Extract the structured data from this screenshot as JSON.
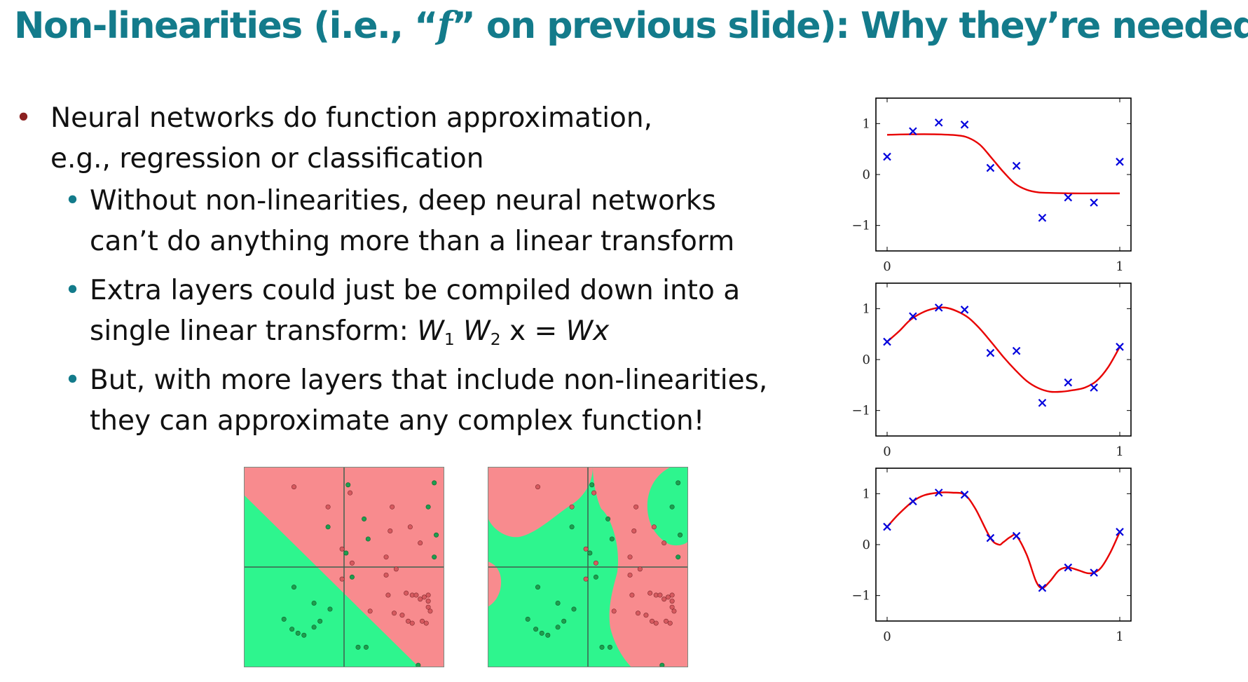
{
  "slide": {
    "title_pre": "Non-linearities (i.e., “",
    "title_var": "f",
    "title_post": "” on previous slide): Why they’re needed"
  },
  "bullets": {
    "main": {
      "line1": "Neural networks do function approximation,",
      "line2": "e.g., regression or classification"
    },
    "sub1": {
      "line1": "Without non-linearities, deep neural networks",
      "line2": "can’t do anything more than a linear transform"
    },
    "sub2": {
      "line1": "Extra layers could just be compiled down into a",
      "line2_pre": "single linear transform: ",
      "w1": "W",
      "w1_sub": "1",
      "w2": "W",
      "w2_sub": "2",
      "x_eq": " x = ",
      "wx": "Wx"
    },
    "sub3": {
      "line1": "But, with more layers that include non-linearities,",
      "line2": "they can approximate any complex function!"
    }
  },
  "colors": {
    "title": "#137b8b",
    "bullet_main": "#8b2020",
    "bullet_sub": "#137b8b",
    "curve": "#e80000",
    "points": "#0000dd",
    "region_red": "#f88b8e",
    "region_green": "#2ef58e"
  },
  "chart_data": [
    {
      "type": "line",
      "description_key": "fit-sigmoid",
      "xlim": [
        0,
        1
      ],
      "ylim": [
        -1.5,
        1.5
      ],
      "xticks": [
        "0",
        "1"
      ],
      "yticks": [
        "1",
        "0",
        "−1"
      ],
      "points": {
        "x": [
          0.0,
          0.111,
          0.222,
          0.333,
          0.444,
          0.556,
          0.667,
          0.778,
          0.889,
          1.0
        ],
        "y": [
          0.35,
          0.85,
          1.02,
          0.98,
          0.13,
          0.17,
          -0.85,
          -0.45,
          -0.55,
          0.25
        ]
      },
      "curve": {
        "x": [
          0.0,
          0.1,
          0.2,
          0.3,
          0.35,
          0.4,
          0.45,
          0.5,
          0.55,
          0.6,
          0.65,
          0.7,
          0.8,
          0.9,
          1.0
        ],
        "y": [
          0.78,
          0.79,
          0.79,
          0.77,
          0.72,
          0.58,
          0.32,
          0.05,
          -0.18,
          -0.3,
          -0.35,
          -0.36,
          -0.37,
          -0.37,
          -0.37
        ]
      }
    },
    {
      "type": "line",
      "description_key": "fit-smooth",
      "xlim": [
        0,
        1
      ],
      "ylim": [
        -1.5,
        1.5
      ],
      "xticks": [
        "0",
        "1"
      ],
      "yticks": [
        "1",
        "0",
        "−1"
      ],
      "points": {
        "x": [
          0.0,
          0.111,
          0.222,
          0.333,
          0.444,
          0.556,
          0.667,
          0.778,
          0.889,
          1.0
        ],
        "y": [
          0.35,
          0.85,
          1.02,
          0.98,
          0.13,
          0.17,
          -0.85,
          -0.45,
          -0.55,
          0.25
        ]
      },
      "curve": {
        "x": [
          0.0,
          0.05,
          0.1,
          0.15,
          0.2,
          0.25,
          0.3,
          0.35,
          0.4,
          0.45,
          0.5,
          0.55,
          0.6,
          0.65,
          0.7,
          0.75,
          0.8,
          0.85,
          0.9,
          0.95,
          1.0
        ],
        "y": [
          0.35,
          0.55,
          0.78,
          0.92,
          1.0,
          1.02,
          0.95,
          0.82,
          0.6,
          0.33,
          0.05,
          -0.2,
          -0.42,
          -0.56,
          -0.63,
          -0.63,
          -0.6,
          -0.55,
          -0.42,
          -0.15,
          0.25
        ]
      }
    },
    {
      "type": "line",
      "description_key": "fit-overfit",
      "xlim": [
        0,
        1
      ],
      "ylim": [
        -1.5,
        1.5
      ],
      "xticks": [
        "0",
        "1"
      ],
      "yticks": [
        "1",
        "0",
        "−1"
      ],
      "points": {
        "x": [
          0.0,
          0.111,
          0.222,
          0.333,
          0.444,
          0.556,
          0.667,
          0.778,
          0.889,
          1.0
        ],
        "y": [
          0.35,
          0.85,
          1.02,
          0.98,
          0.13,
          0.17,
          -0.85,
          -0.45,
          -0.55,
          0.25
        ]
      },
      "curve": {
        "x": [
          0.0,
          0.05,
          0.111,
          0.16,
          0.222,
          0.28,
          0.333,
          0.38,
          0.444,
          0.48,
          0.5,
          0.53,
          0.556,
          0.6,
          0.64,
          0.667,
          0.7,
          0.74,
          0.778,
          0.82,
          0.86,
          0.889,
          0.92,
          0.96,
          1.0
        ],
        "y": [
          0.35,
          0.6,
          0.85,
          0.97,
          1.02,
          1.02,
          0.98,
          0.7,
          0.13,
          0.0,
          0.05,
          0.15,
          0.17,
          -0.2,
          -0.72,
          -0.85,
          -0.72,
          -0.5,
          -0.45,
          -0.5,
          -0.56,
          -0.55,
          -0.45,
          -0.15,
          0.25
        ]
      }
    }
  ],
  "scatter_points": {
    "green": [
      [
        0.52,
        0.09
      ],
      [
        0.95,
        0.45
      ],
      [
        0.96,
        0.34
      ],
      [
        0.92,
        0.2
      ],
      [
        0.95,
        0.08
      ],
      [
        0.51,
        0.43
      ],
      [
        0.62,
        0.36
      ],
      [
        0.6,
        0.26
      ],
      [
        0.54,
        0.55
      ],
      [
        0.42,
        0.3
      ],
      [
        0.25,
        0.6
      ],
      [
        0.35,
        0.68
      ],
      [
        0.43,
        0.71
      ],
      [
        0.2,
        0.76
      ],
      [
        0.24,
        0.81
      ],
      [
        0.27,
        0.83
      ],
      [
        0.3,
        0.84
      ],
      [
        0.35,
        0.8
      ],
      [
        0.38,
        0.77
      ],
      [
        0.57,
        0.9
      ],
      [
        0.61,
        0.9
      ],
      [
        0.87,
        0.99
      ]
    ],
    "red": [
      [
        0.25,
        0.1
      ],
      [
        0.53,
        0.13
      ],
      [
        0.74,
        0.2
      ],
      [
        0.83,
        0.3
      ],
      [
        0.42,
        0.2
      ],
      [
        0.49,
        0.41
      ],
      [
        0.73,
        0.32
      ],
      [
        0.76,
        0.51
      ],
      [
        0.71,
        0.45
      ],
      [
        0.71,
        0.54
      ],
      [
        0.88,
        0.38
      ],
      [
        0.72,
        0.64
      ],
      [
        0.81,
        0.63
      ],
      [
        0.84,
        0.64
      ],
      [
        0.86,
        0.64
      ],
      [
        0.88,
        0.66
      ],
      [
        0.9,
        0.65
      ],
      [
        0.92,
        0.67
      ],
      [
        0.92,
        0.64
      ],
      [
        0.93,
        0.72
      ],
      [
        0.75,
        0.73
      ],
      [
        0.79,
        0.74
      ],
      [
        0.82,
        0.77
      ],
      [
        0.84,
        0.78
      ],
      [
        0.89,
        0.77
      ],
      [
        0.91,
        0.78
      ],
      [
        0.92,
        0.7
      ],
      [
        0.54,
        0.48
      ],
      [
        0.63,
        0.72
      ],
      [
        0.49,
        0.56
      ]
    ]
  }
}
